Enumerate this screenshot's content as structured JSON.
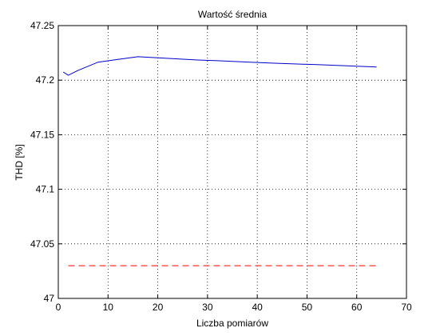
{
  "chart_data": {
    "type": "line",
    "title": "Wartość średnia",
    "xlabel": "Liczba pomiarów",
    "ylabel": "THD [%]",
    "xlim": [
      0,
      70
    ],
    "ylim": [
      47,
      47.25
    ],
    "xticks": [
      0,
      10,
      20,
      30,
      40,
      50,
      60,
      70
    ],
    "yticks": [
      47,
      47.05,
      47.1,
      47.15,
      47.2,
      47.25
    ],
    "xtick_labels": [
      "0",
      "10",
      "20",
      "30",
      "40",
      "50",
      "60",
      "70"
    ],
    "ytick_labels": [
      "47",
      "47.05",
      "47.1",
      "47.15",
      "47.2",
      "47.25"
    ],
    "grid": true,
    "series": [
      {
        "color": "#0000cc",
        "style": "solid",
        "x": [
          1,
          2,
          4,
          8,
          12,
          16,
          20,
          24,
          28,
          32,
          36,
          40,
          44,
          48,
          52,
          56,
          60,
          64
        ],
        "y": [
          47.2075,
          47.2045,
          47.209,
          47.2165,
          47.219,
          47.2215,
          47.2205,
          47.2195,
          47.2185,
          47.2178,
          47.217,
          47.2162,
          47.2155,
          47.2148,
          47.2142,
          47.2135,
          47.2128,
          47.212
        ]
      },
      {
        "color": "#ff0000",
        "style": "dashed",
        "x": [
          2,
          64
        ],
        "y": [
          47.03,
          47.03
        ]
      }
    ]
  }
}
